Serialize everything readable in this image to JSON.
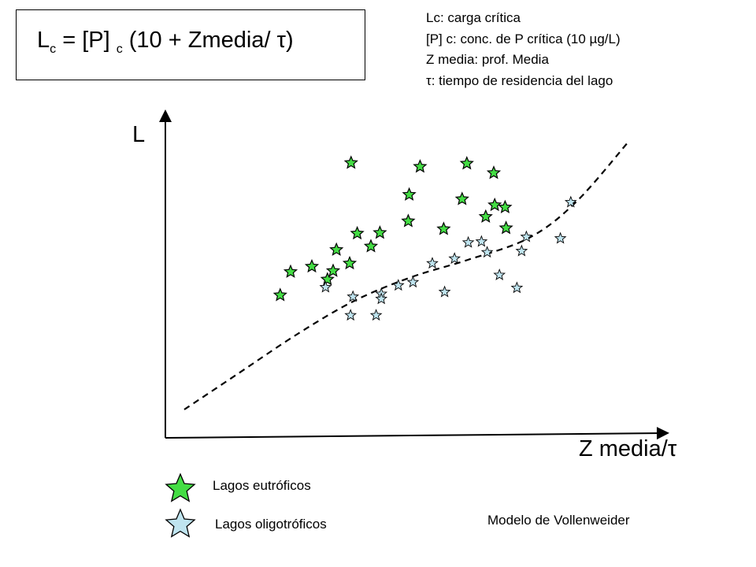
{
  "formula": {
    "L_main": "L",
    "L_sub": "c",
    "mid": " = [P]",
    "P_sub": "c",
    "tail": " (10 + Zmedia/ τ)"
  },
  "notes": [
    "Lc: carga crítica",
    "[P] c: conc. de P crítica (10 µg/L)",
    "Z media: prof. Media",
    "τ: tiempo de residencia del lago"
  ],
  "chart_data": {
    "type": "scatter",
    "title": "Modelo de Vollenweider",
    "xlabel": "Z media/τ",
    "ylabel": "L",
    "xlim": [
      0,
      100
    ],
    "ylim": [
      0,
      100
    ],
    "grid": false,
    "colors": {
      "eutrophic": "#44dd44",
      "oligotrophic": "#bfe4ef",
      "stroke": "#000000"
    },
    "series": [
      {
        "name": "Lagos eutróficos",
        "marker": "star",
        "points": [
          [
            39.3,
            87.3
          ],
          [
            53.9,
            86.1
          ],
          [
            63.8,
            87.1
          ],
          [
            69.5,
            84.1
          ],
          [
            51.6,
            77.2
          ],
          [
            62.8,
            75.8
          ],
          [
            69.7,
            73.9
          ],
          [
            71.9,
            73.2
          ],
          [
            67.8,
            70.2
          ],
          [
            51.4,
            68.8
          ],
          [
            72.1,
            66.6
          ],
          [
            58.9,
            66.3
          ],
          [
            45.4,
            65.1
          ],
          [
            40.6,
            64.9
          ],
          [
            43.5,
            60.8
          ],
          [
            36.2,
            59.7
          ],
          [
            39.0,
            55.4
          ],
          [
            31.0,
            54.4
          ],
          [
            26.5,
            52.7
          ],
          [
            24.3,
            45.3
          ],
          [
            35.5,
            53.0
          ],
          [
            34.3,
            50.3
          ]
        ]
      },
      {
        "name": "Lagos oligotróficos",
        "marker": "star",
        "points": [
          [
            85.8,
            74.8
          ],
          [
            76.4,
            63.8
          ],
          [
            83.6,
            63.3
          ],
          [
            66.9,
            62.3
          ],
          [
            64.1,
            62.0
          ],
          [
            68.1,
            58.9
          ],
          [
            75.4,
            59.3
          ],
          [
            61.2,
            56.9
          ],
          [
            56.5,
            55.4
          ],
          [
            70.7,
            51.7
          ],
          [
            74.4,
            47.6
          ],
          [
            52.4,
            49.4
          ],
          [
            33.9,
            47.8
          ],
          [
            45.7,
            45.7
          ],
          [
            59.1,
            46.3
          ],
          [
            49.3,
            48.4
          ],
          [
            39.7,
            44.8
          ],
          [
            45.7,
            44.1
          ],
          [
            39.2,
            38.9
          ],
          [
            44.6,
            38.9
          ]
        ]
      }
    ],
    "threshold_line": {
      "name": "Lc",
      "style": "dashed",
      "points": [
        [
          4,
          9
        ],
        [
          15,
          20
        ],
        [
          28,
          33
        ],
        [
          40,
          43.5
        ],
        [
          52,
          51
        ],
        [
          64,
          56.5
        ],
        [
          77,
          63.5
        ],
        [
          87,
          75
        ],
        [
          98,
          94
        ]
      ]
    }
  }
}
